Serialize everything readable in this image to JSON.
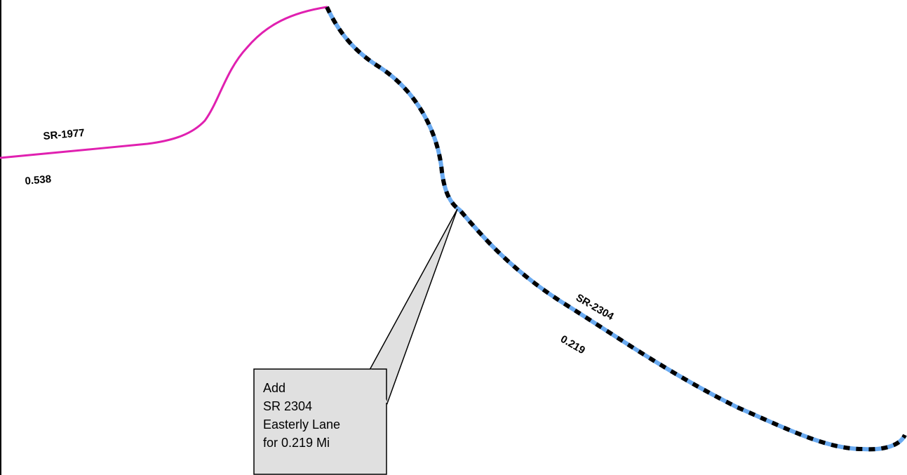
{
  "roads": [
    {
      "route": "SR-1977",
      "length": "0.538",
      "color": "#e020b0"
    },
    {
      "route": "SR-2304",
      "length": "0.219",
      "dash_color_1": "#000000",
      "dash_color_2": "#6aaaf0"
    }
  ],
  "callout": {
    "lines": [
      "Add",
      "SR 2304",
      "Easterly Lane",
      "for 0.219 Mi"
    ],
    "fill": "#e0e0e0",
    "stroke": "#000000"
  }
}
